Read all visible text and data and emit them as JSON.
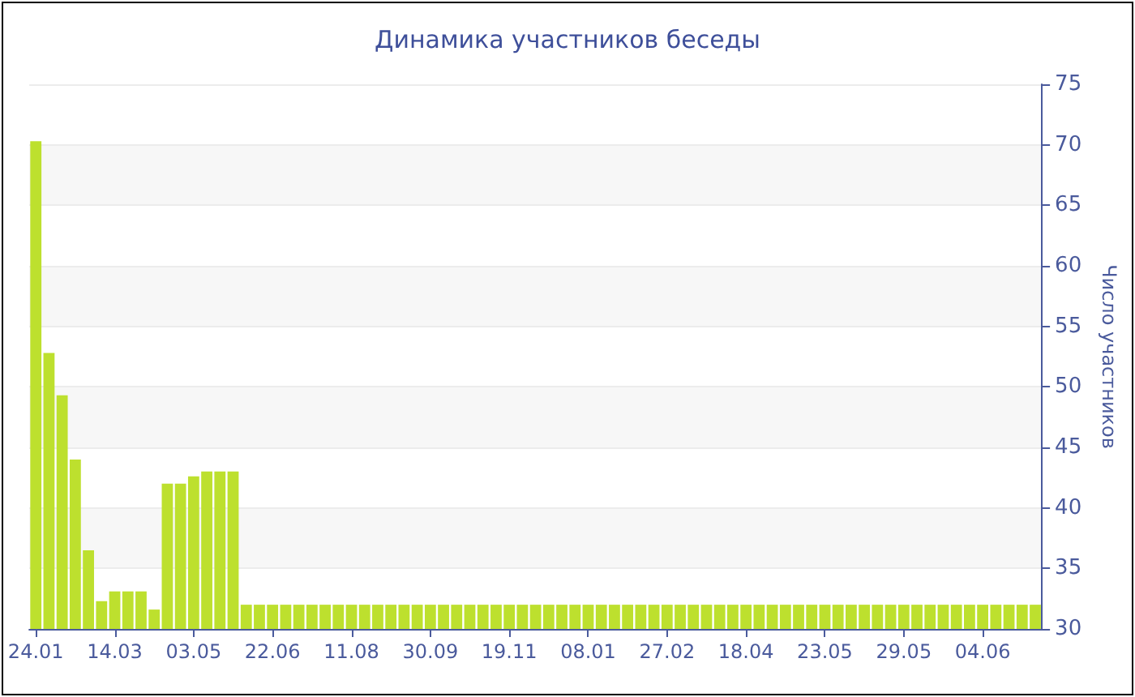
{
  "chart_data": {
    "type": "bar",
    "title": "Динамика участников беседы",
    "ylabel": "Число участников",
    "categories": [
      "24.01",
      null,
      null,
      null,
      null,
      null,
      "14.03",
      null,
      null,
      null,
      null,
      null,
      "03.05",
      null,
      null,
      null,
      null,
      null,
      "22.06",
      null,
      null,
      null,
      null,
      null,
      "11.08",
      null,
      null,
      null,
      null,
      null,
      "30.09",
      null,
      null,
      null,
      null,
      null,
      "19.11",
      null,
      null,
      null,
      null,
      null,
      "08.01",
      null,
      null,
      null,
      null,
      null,
      "27.02",
      null,
      null,
      null,
      null,
      null,
      "18.04",
      null,
      null,
      null,
      null,
      null,
      "23.05",
      null,
      null,
      null,
      null,
      null,
      "29.05",
      null,
      null,
      null,
      null,
      null,
      "04.06",
      null,
      null,
      null,
      null
    ],
    "values": [
      70.3,
      52.8,
      49.3,
      44,
      36.5,
      32.3,
      33.1,
      33.1,
      33.1,
      31.6,
      42,
      42,
      42.6,
      43,
      43,
      43,
      32,
      32,
      32,
      32,
      32,
      32,
      32,
      32,
      32,
      32,
      32,
      32,
      32,
      32,
      32,
      32,
      32,
      32,
      32,
      32,
      32,
      32,
      32,
      32,
      32,
      32,
      32,
      32,
      32,
      32,
      32,
      32,
      32,
      32,
      32,
      32,
      32,
      32,
      32,
      32,
      32,
      32,
      32,
      32,
      32,
      32,
      32,
      32,
      32,
      32,
      32,
      32,
      32,
      32,
      32,
      32,
      32,
      32,
      32,
      32,
      32
    ],
    "color": "#bde02e",
    "ylim": [
      30,
      75
    ],
    "yticks": [
      30,
      35,
      40,
      45,
      50,
      55,
      60,
      65,
      70,
      75
    ],
    "grid": true
  }
}
